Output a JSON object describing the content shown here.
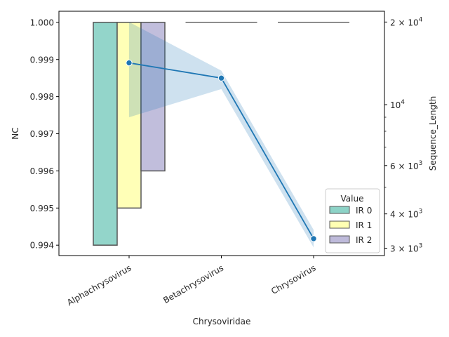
{
  "chart_data": {
    "type": "bar",
    "categories": [
      "Alphachrysovirus",
      "Betachrysovirus",
      "Chrysovirus"
    ],
    "xlabel": "Chrysoviridae",
    "ylabel": "NC",
    "ylabel_right": "Sequence_Length",
    "ylim": [
      0.99372,
      1.0003
    ],
    "y_ticks": [
      0.994,
      0.995,
      0.996,
      0.997,
      0.998,
      0.999,
      1.0
    ],
    "y_tick_labels": [
      "0.994",
      "0.995",
      "0.996",
      "0.997",
      "0.998",
      "0.999",
      "1.000"
    ],
    "series": [
      {
        "name": "IR 0",
        "color": "#8dd3c7",
        "values": [
          0.994,
          1.0,
          1.0
        ]
      },
      {
        "name": "IR 1",
        "color": "#ffffb3",
        "values": [
          0.995,
          1.0,
          1.0
        ]
      },
      {
        "name": "IR 2",
        "color": "#bebada",
        "values": [
          0.996,
          1.0,
          1.0
        ]
      }
    ],
    "bar_top": 1.0,
    "legend": {
      "title": "Value",
      "placement": "lower-right"
    },
    "secondary": {
      "type": "line",
      "scale": "log",
      "ylim": [
        2820,
        21900
      ],
      "values": [
        14200,
        12500,
        3250
      ],
      "ci_lower": [
        9000,
        11400,
        3020
      ],
      "ci_upper": [
        20000,
        13300,
        3500
      ],
      "color": "#1f77b4",
      "major_ticks": [
        3000,
        4000,
        6000,
        10000,
        20000
      ],
      "major_tick_bases": [
        "3",
        "4",
        "6",
        "",
        "2"
      ],
      "minor_ticks": [
        5000,
        7000,
        8000,
        9000
      ],
      "base_label": "10",
      "exponents": [
        "3",
        "3",
        "3",
        "4",
        "4"
      ]
    }
  }
}
